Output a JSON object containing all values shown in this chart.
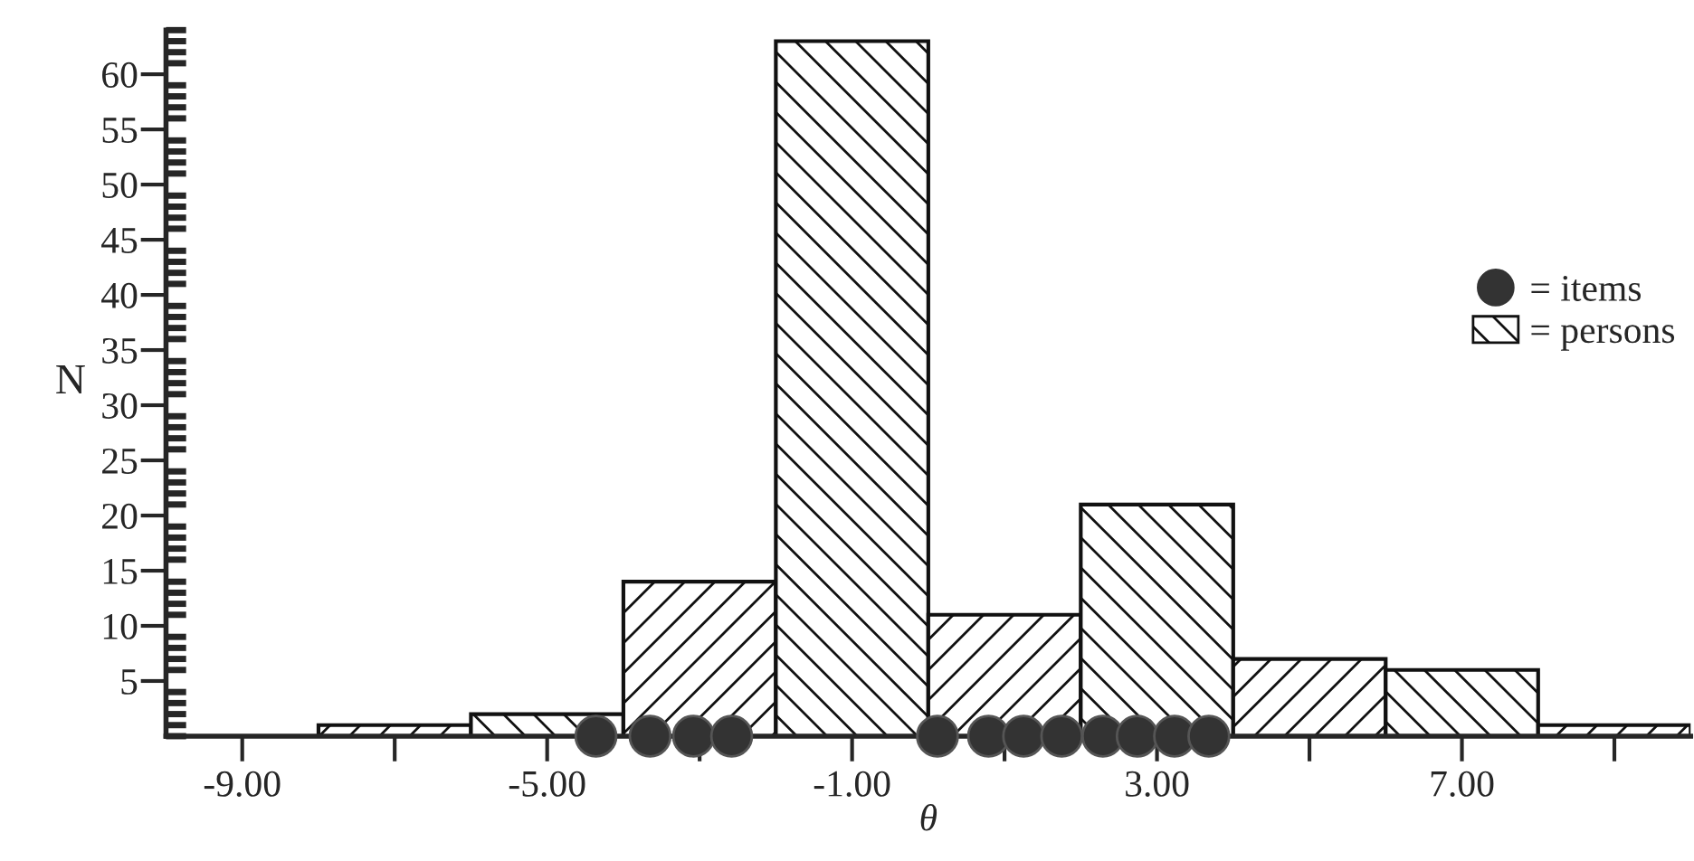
{
  "chart_data": {
    "type": "histogram",
    "xlabel": "θ",
    "ylabel": "N",
    "xlim": [
      -10,
      10
    ],
    "ylim": [
      0,
      64
    ],
    "xticks": [
      {
        "value": -9,
        "label": "-9.00"
      },
      {
        "value": -7,
        "label": null
      },
      {
        "value": -5,
        "label": "-5.00"
      },
      {
        "value": -3,
        "label": null
      },
      {
        "value": -1,
        "label": "-1.00"
      },
      {
        "value": 1,
        "label": null
      },
      {
        "value": 3,
        "label": "3.00"
      },
      {
        "value": 5,
        "label": null
      },
      {
        "value": 7,
        "label": "7.00"
      },
      {
        "value": 9,
        "label": null
      }
    ],
    "yticks": [
      5,
      10,
      15,
      20,
      25,
      30,
      35,
      40,
      45,
      50,
      55,
      60
    ],
    "legend": "right",
    "grid": false,
    "series": [
      {
        "name": "= persons",
        "color": "#111111",
        "bins": [
          -8,
          -6,
          -4,
          -2,
          0,
          2,
          4,
          6,
          8,
          10
        ],
        "values": [
          1,
          2,
          14,
          63,
          11,
          21,
          7,
          6,
          1
        ]
      },
      {
        "type": "scatter",
        "name": "= items",
        "color": "#333333",
        "marker": "circle",
        "x": [
          -4.36,
          -3.65,
          -3.08,
          -2.58,
          0.12,
          0.79,
          1.25,
          1.75,
          2.29,
          2.74,
          3.23,
          3.68
        ],
        "values": [
          0,
          0,
          0,
          0,
          0,
          0,
          0,
          0,
          0,
          0,
          0,
          0
        ]
      }
    ]
  }
}
